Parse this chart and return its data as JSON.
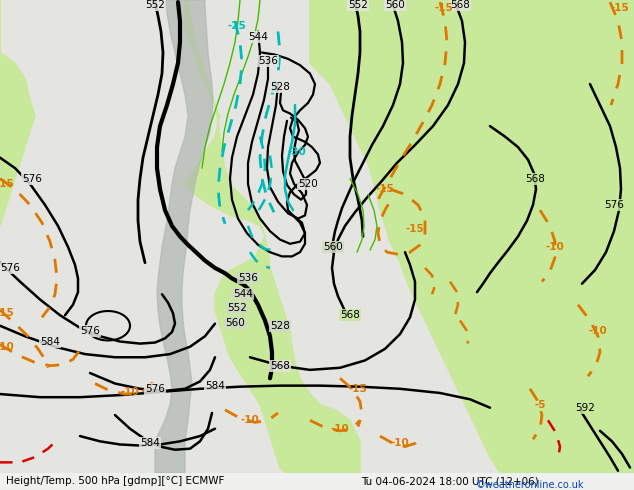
{
  "title_left": "Height/Temp. 500 hPa [gdmp][°C] ECMWF",
  "title_right": "Tu 04-06-2024 18:00 UTC (12+06)",
  "credit": "©weatheronline.co.uk",
  "bg_light_green": "#c8e6a0",
  "bg_grey": "#d0d0d0",
  "bg_light_grey": "#e8e8e8",
  "bg_white_grey": "#f0f0ee",
  "height_color": "#000000",
  "temp_warm_color": "#dd7700",
  "temp_cold_color": "#00bbbb",
  "temp_veryold_color": "#008888",
  "green_line_color": "#44bb00",
  "red_color": "#dd0000",
  "figsize": [
    6.34,
    4.9
  ],
  "dpi": 100
}
